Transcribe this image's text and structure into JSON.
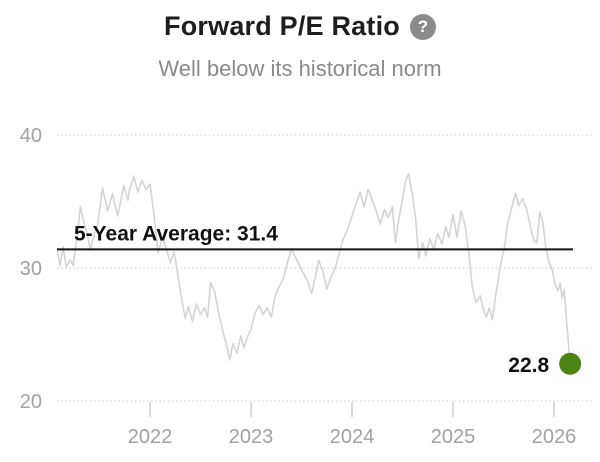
{
  "header": {
    "title": "Forward P/E Ratio",
    "help_icon_glyph": "?",
    "subtitle": "Well below its historical norm"
  },
  "colors": {
    "series_line": "#d4d4d4",
    "average_line": "#111111",
    "gridline": "#dcdcdc",
    "tick_mark": "#cfcfcf",
    "axis_label": "#a2a2a2",
    "annotation_text": "#111111",
    "endpoint_dot": "#4c8412",
    "title_text": "#1e1e1e",
    "subtitle_text": "#8a8a8a",
    "help_icon_bg": "#8b8b8b"
  },
  "chart_data": {
    "type": "line",
    "title": "Forward P/E Ratio",
    "subtitle": "Well below its historical norm",
    "grid": "dotted-horizontal",
    "legend": "none",
    "y_axis": {
      "ticks": [
        20,
        30,
        40
      ],
      "range": [
        18.5,
        41.5
      ]
    },
    "x_axis": {
      "ticks": [
        2022,
        2023,
        2024,
        2025,
        2026
      ],
      "range": [
        2021.05,
        2026.45
      ]
    },
    "average_line": {
      "label": "5-Year Average: 31.4",
      "value": 31.4
    },
    "end_point": {
      "label": "22.8",
      "t": 2026.16,
      "value": 22.8
    },
    "series": [
      {
        "name": "Forward P/E",
        "points": [
          [
            2021.08,
            31.3
          ],
          [
            2021.11,
            30.2
          ],
          [
            2021.14,
            31.6
          ],
          [
            2021.17,
            30.1
          ],
          [
            2021.21,
            30.6
          ],
          [
            2021.24,
            30.2
          ],
          [
            2021.28,
            32.4
          ],
          [
            2021.31,
            34.6
          ],
          [
            2021.34,
            33.6
          ],
          [
            2021.37,
            32.8
          ],
          [
            2021.41,
            31.4
          ],
          [
            2021.45,
            32.6
          ],
          [
            2021.48,
            33.2
          ],
          [
            2021.53,
            36.0
          ],
          [
            2021.56,
            35.0
          ],
          [
            2021.58,
            34.3
          ],
          [
            2021.63,
            35.6
          ],
          [
            2021.66,
            34.5
          ],
          [
            2021.68,
            33.9
          ],
          [
            2021.72,
            35.4
          ],
          [
            2021.74,
            36.2
          ],
          [
            2021.78,
            35.1
          ],
          [
            2021.8,
            35.9
          ],
          [
            2021.84,
            36.9
          ],
          [
            2021.88,
            35.7
          ],
          [
            2021.92,
            36.6
          ],
          [
            2021.96,
            35.9
          ],
          [
            2022.0,
            36.3
          ],
          [
            2022.04,
            34.0
          ],
          [
            2022.08,
            31.1
          ],
          [
            2022.12,
            32.3
          ],
          [
            2022.16,
            31.5
          ],
          [
            2022.2,
            30.4
          ],
          [
            2022.24,
            31.2
          ],
          [
            2022.28,
            29.3
          ],
          [
            2022.31,
            27.8
          ],
          [
            2022.35,
            26.2
          ],
          [
            2022.38,
            27.1
          ],
          [
            2022.42,
            26.0
          ],
          [
            2022.46,
            27.3
          ],
          [
            2022.5,
            26.5
          ],
          [
            2022.54,
            27.0
          ],
          [
            2022.57,
            26.3
          ],
          [
            2022.6,
            28.9
          ],
          [
            2022.64,
            28.2
          ],
          [
            2022.68,
            26.6
          ],
          [
            2022.72,
            25.3
          ],
          [
            2022.76,
            24.1
          ],
          [
            2022.79,
            23.1
          ],
          [
            2022.82,
            24.3
          ],
          [
            2022.86,
            23.6
          ],
          [
            2022.9,
            24.9
          ],
          [
            2022.93,
            24.0
          ],
          [
            2022.97,
            24.9
          ],
          [
            2023.0,
            25.4
          ],
          [
            2023.04,
            26.6
          ],
          [
            2023.08,
            27.2
          ],
          [
            2023.12,
            26.5
          ],
          [
            2023.16,
            27.0
          ],
          [
            2023.2,
            26.3
          ],
          [
            2023.24,
            27.9
          ],
          [
            2023.28,
            28.6
          ],
          [
            2023.32,
            29.2
          ],
          [
            2023.36,
            30.4
          ],
          [
            2023.4,
            31.4
          ],
          [
            2023.44,
            30.8
          ],
          [
            2023.48,
            30.2
          ],
          [
            2023.52,
            29.6
          ],
          [
            2023.56,
            29.0
          ],
          [
            2023.6,
            28.1
          ],
          [
            2023.64,
            29.4
          ],
          [
            2023.67,
            30.6
          ],
          [
            2023.71,
            29.8
          ],
          [
            2023.75,
            28.4
          ],
          [
            2023.79,
            29.3
          ],
          [
            2023.83,
            29.9
          ],
          [
            2023.87,
            31.0
          ],
          [
            2023.91,
            32.1
          ],
          [
            2023.95,
            32.8
          ],
          [
            2024.0,
            33.9
          ],
          [
            2024.04,
            34.8
          ],
          [
            2024.08,
            35.7
          ],
          [
            2024.12,
            34.6
          ],
          [
            2024.16,
            35.9
          ],
          [
            2024.2,
            35.1
          ],
          [
            2024.24,
            34.3
          ],
          [
            2024.28,
            33.3
          ],
          [
            2024.32,
            34.4
          ],
          [
            2024.36,
            33.8
          ],
          [
            2024.4,
            34.6
          ],
          [
            2024.43,
            31.9
          ],
          [
            2024.46,
            33.5
          ],
          [
            2024.5,
            35.2
          ],
          [
            2024.53,
            36.5
          ],
          [
            2024.56,
            37.1
          ],
          [
            2024.6,
            35.4
          ],
          [
            2024.63,
            33.8
          ],
          [
            2024.66,
            30.7
          ],
          [
            2024.7,
            31.9
          ],
          [
            2024.73,
            30.9
          ],
          [
            2024.77,
            32.2
          ],
          [
            2024.81,
            31.4
          ],
          [
            2024.85,
            32.6
          ],
          [
            2024.89,
            31.8
          ],
          [
            2024.93,
            33.1
          ],
          [
            2024.96,
            32.3
          ],
          [
            2025.0,
            34.0
          ],
          [
            2025.04,
            32.3
          ],
          [
            2025.08,
            34.3
          ],
          [
            2025.12,
            33.2
          ],
          [
            2025.16,
            30.9
          ],
          [
            2025.19,
            28.6
          ],
          [
            2025.23,
            27.4
          ],
          [
            2025.27,
            27.9
          ],
          [
            2025.3,
            26.9
          ],
          [
            2025.33,
            26.3
          ],
          [
            2025.36,
            27.0
          ],
          [
            2025.39,
            26.1
          ],
          [
            2025.43,
            28.3
          ],
          [
            2025.47,
            30.2
          ],
          [
            2025.51,
            31.6
          ],
          [
            2025.54,
            33.3
          ],
          [
            2025.58,
            34.5
          ],
          [
            2025.62,
            35.6
          ],
          [
            2025.65,
            34.7
          ],
          [
            2025.69,
            35.2
          ],
          [
            2025.73,
            34.4
          ],
          [
            2025.77,
            33.0
          ],
          [
            2025.8,
            32.1
          ],
          [
            2025.83,
            31.9
          ],
          [
            2025.86,
            34.2
          ],
          [
            2025.89,
            33.4
          ],
          [
            2025.92,
            31.5
          ],
          [
            2025.95,
            30.4
          ],
          [
            2025.98,
            29.9
          ],
          [
            2026.01,
            28.8
          ],
          [
            2026.04,
            28.3
          ],
          [
            2026.06,
            28.9
          ],
          [
            2026.08,
            27.7
          ],
          [
            2026.1,
            28.4
          ],
          [
            2026.12,
            26.5
          ],
          [
            2026.14,
            24.6
          ],
          [
            2026.16,
            22.8
          ]
        ]
      }
    ]
  }
}
